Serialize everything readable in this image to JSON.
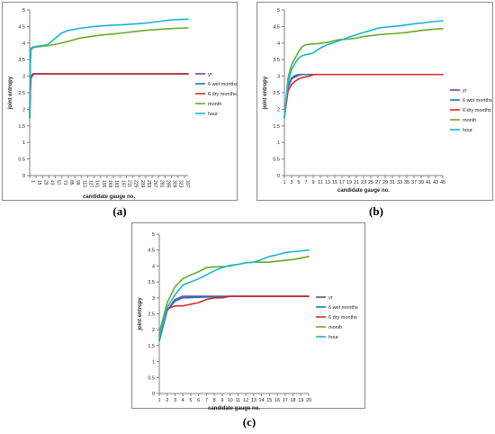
{
  "panels": [
    {
      "tag": "(a)"
    },
    {
      "tag": "(b)"
    },
    {
      "tag": "(c)"
    }
  ],
  "chart_data": [
    {
      "type": "line",
      "panel": "(a)",
      "title": "",
      "xlabel": "candidate gauge no.",
      "ylabel": "joint entropy",
      "ylim": [
        0,
        5
      ],
      "yticks": [
        "0",
        "0.5",
        "1",
        "1.5",
        "2",
        "2.5",
        "3",
        "3.5",
        "4",
        "4.5",
        "5"
      ],
      "xlim": [
        1,
        345
      ],
      "xticks": [
        1,
        15,
        29,
        43,
        57,
        71,
        85,
        99,
        113,
        127,
        141,
        155,
        169,
        183,
        197,
        211,
        225,
        239,
        253,
        267,
        281,
        295,
        309,
        323,
        337
      ],
      "legend": "right",
      "series": [
        {
          "name": "yr",
          "color": "#7b3fa0",
          "x": [
            1,
            3,
            5,
            8,
            345
          ],
          "values": [
            1.75,
            2.9,
            3.0,
            3.07,
            3.07
          ]
        },
        {
          "name": "6 wet months",
          "color": "#1f77b4",
          "x": [
            1,
            3,
            5,
            8,
            345
          ],
          "values": [
            1.75,
            2.95,
            3.02,
            3.07,
            3.07
          ]
        },
        {
          "name": "6 dry months",
          "color": "#d62728",
          "x": [
            1,
            3,
            5,
            10,
            345
          ],
          "values": [
            1.75,
            2.9,
            2.98,
            3.07,
            3.07
          ]
        },
        {
          "name": "month",
          "color": "#6aaa2a",
          "x": [
            1,
            2,
            4,
            8,
            15,
            40,
            60,
            85,
            110,
            150,
            200,
            250,
            300,
            345
          ],
          "values": [
            1.75,
            3.3,
            3.8,
            3.86,
            3.88,
            3.92,
            3.97,
            4.05,
            4.15,
            4.23,
            4.3,
            4.38,
            4.43,
            4.46
          ]
        },
        {
          "name": "hour",
          "color": "#17b5d6",
          "x": [
            1,
            2,
            4,
            8,
            15,
            40,
            57,
            70,
            85,
            113,
            141,
            169,
            211,
            253,
            281,
            309,
            345
          ],
          "values": [
            1.75,
            3.5,
            3.85,
            3.88,
            3.9,
            3.95,
            4.15,
            4.3,
            4.38,
            4.45,
            4.5,
            4.53,
            4.56,
            4.6,
            4.65,
            4.7,
            4.72
          ]
        }
      ]
    },
    {
      "type": "line",
      "panel": "(b)",
      "title": "",
      "xlabel": "candidate gauge no.",
      "ylabel": "joint entropy",
      "ylim": [
        0,
        5
      ],
      "yticks": [
        "0",
        "0.5",
        "1",
        "1.5",
        "2",
        "2.5",
        "3",
        "3.5",
        "4",
        "4.5",
        "5"
      ],
      "xlim": [
        1,
        45
      ],
      "xticks": [
        1,
        3,
        5,
        7,
        9,
        11,
        13,
        15,
        17,
        19,
        21,
        23,
        25,
        27,
        29,
        31,
        33,
        35,
        37,
        39,
        41,
        43,
        45
      ],
      "legend": "right",
      "series": [
        {
          "name": "yr",
          "color": "#7b3fa0",
          "x": [
            1,
            2,
            3,
            4,
            5,
            6,
            7,
            45
          ],
          "values": [
            1.75,
            2.65,
            2.92,
            2.98,
            3.03,
            3.05,
            3.05,
            3.05
          ]
        },
        {
          "name": "6 wet months",
          "color": "#1f77b4",
          "x": [
            1,
            2,
            3,
            4,
            5,
            6,
            45
          ],
          "values": [
            1.75,
            2.7,
            2.95,
            3.02,
            3.05,
            3.05,
            3.05
          ]
        },
        {
          "name": "6 dry months",
          "color": "#d62728",
          "x": [
            1,
            2,
            3,
            4,
            5,
            6,
            8,
            9,
            45
          ],
          "values": [
            1.75,
            2.55,
            2.75,
            2.85,
            2.92,
            2.96,
            3.0,
            3.05,
            3.05
          ]
        },
        {
          "name": "month",
          "color": "#6aaa2a",
          "x": [
            1,
            2,
            3,
            4,
            5,
            6,
            7,
            8,
            10,
            13,
            16,
            19,
            21,
            23,
            25,
            27,
            29,
            31,
            33,
            35,
            37,
            39,
            41,
            43,
            45
          ],
          "values": [
            1.75,
            2.95,
            3.35,
            3.55,
            3.75,
            3.9,
            3.95,
            3.97,
            3.98,
            4.02,
            4.1,
            4.12,
            4.15,
            4.2,
            4.22,
            4.25,
            4.27,
            4.28,
            4.3,
            4.32,
            4.35,
            4.38,
            4.4,
            4.42,
            4.43
          ]
        },
        {
          "name": "hour",
          "color": "#17b5d6",
          "x": [
            1,
            2,
            3,
            4,
            5,
            6,
            7,
            9,
            11,
            13,
            15,
            17,
            19,
            21,
            23,
            25,
            27,
            29,
            31,
            33,
            35,
            37,
            39,
            41,
            43,
            45
          ],
          "values": [
            1.75,
            2.8,
            3.2,
            3.4,
            3.55,
            3.62,
            3.65,
            3.7,
            3.85,
            3.95,
            4.02,
            4.1,
            4.18,
            4.25,
            4.32,
            4.38,
            4.45,
            4.48,
            4.5,
            4.52,
            4.55,
            4.58,
            4.6,
            4.63,
            4.65,
            4.67
          ]
        }
      ]
    },
    {
      "type": "line",
      "panel": "(c)",
      "title": "",
      "xlabel": "candidate gauge no.",
      "ylabel": "joint entropy",
      "ylim": [
        0,
        5
      ],
      "yticks": [
        "0",
        "0.5",
        "1",
        "1.5",
        "2",
        "2.5",
        "3",
        "3.5",
        "4",
        "4.5",
        "5"
      ],
      "xlim": [
        1,
        20
      ],
      "xticks": [
        1,
        2,
        3,
        4,
        5,
        6,
        7,
        8,
        9,
        10,
        11,
        12,
        13,
        14,
        15,
        16,
        17,
        18,
        19,
        20
      ],
      "legend": "right",
      "series": [
        {
          "name": "yr",
          "color": "#7b3fa0",
          "x": [
            1,
            2,
            3,
            4,
            5,
            20
          ],
          "values": [
            1.8,
            2.6,
            2.95,
            3.05,
            3.05,
            3.05
          ]
        },
        {
          "name": "6 wet months",
          "color": "#1f77b4",
          "x": [
            1,
            2,
            3,
            4,
            10,
            20
          ],
          "values": [
            1.65,
            2.6,
            2.9,
            3.0,
            3.05,
            3.05
          ]
        },
        {
          "name": "6 dry months",
          "color": "#d62728",
          "x": [
            1,
            2,
            3,
            4,
            5,
            6,
            7,
            8,
            9,
            10,
            20
          ],
          "values": [
            1.9,
            2.65,
            2.75,
            2.75,
            2.8,
            2.85,
            2.95,
            3.0,
            3.0,
            3.05,
            3.05
          ]
        },
        {
          "name": "month",
          "color": "#6aaa2a",
          "x": [
            1,
            2,
            3,
            4,
            5,
            6,
            7,
            8,
            9,
            10,
            11,
            12,
            13,
            14,
            15,
            16,
            17,
            18,
            19,
            20
          ],
          "values": [
            1.9,
            2.85,
            3.35,
            3.6,
            3.72,
            3.82,
            3.95,
            3.97,
            3.98,
            4.0,
            4.05,
            4.1,
            4.12,
            4.12,
            4.12,
            4.15,
            4.18,
            4.2,
            4.25,
            4.3
          ]
        },
        {
          "name": "hour",
          "color": "#17b5d6",
          "x": [
            1,
            2,
            3,
            4,
            5,
            6,
            7,
            8,
            9,
            10,
            11,
            12,
            13,
            14,
            15,
            16,
            17,
            18,
            19,
            20
          ],
          "values": [
            1.75,
            2.7,
            3.1,
            3.4,
            3.5,
            3.6,
            3.72,
            3.85,
            3.95,
            4.02,
            4.05,
            4.1,
            4.12,
            4.2,
            4.3,
            4.35,
            4.42,
            4.45,
            4.47,
            4.5
          ]
        }
      ]
    }
  ]
}
